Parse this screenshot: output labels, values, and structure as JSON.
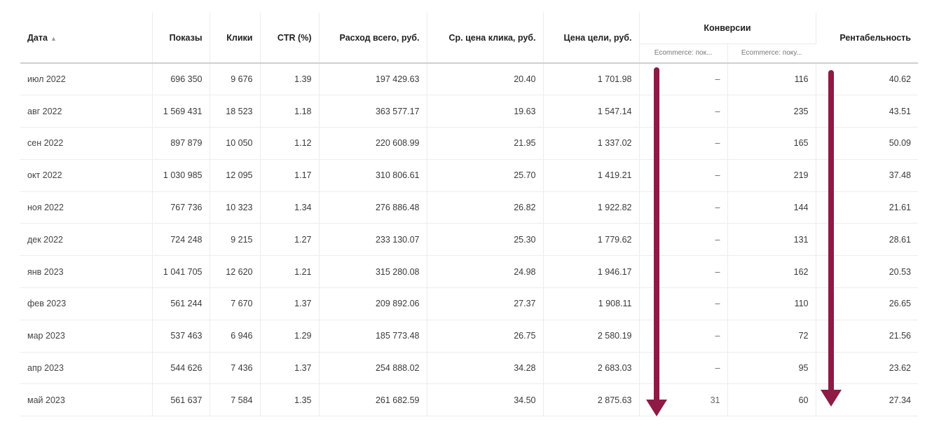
{
  "header": {
    "date": "Дата",
    "sort_icon": "▲",
    "impressions": "Показы",
    "clicks": "Клики",
    "ctr": "CTR (%)",
    "total_spend": "Расход всего, руб.",
    "avg_click_price": "Ср. цена клика, руб.",
    "goal_price": "Цена цели, руб.",
    "conversions": "Конверсии",
    "conv_sub1": "Ecommerce: пок...",
    "conv_sub2": "Ecommerce: поку...",
    "profitability": "Рентабельность"
  },
  "rows": [
    {
      "date": "июл 2022",
      "impressions": "696 350",
      "clicks": "9 676",
      "ctr": "1.39",
      "spend": "197 429.63",
      "cpc": "20.40",
      "goal": "1 701.98",
      "conv1": "–",
      "conv2": "116",
      "profit": "40.62"
    },
    {
      "date": "авг 2022",
      "impressions": "1 569 431",
      "clicks": "18 523",
      "ctr": "1.18",
      "spend": "363 577.17",
      "cpc": "19.63",
      "goal": "1 547.14",
      "conv1": "–",
      "conv2": "235",
      "profit": "43.51"
    },
    {
      "date": "сен 2022",
      "impressions": "897 879",
      "clicks": "10 050",
      "ctr": "1.12",
      "spend": "220 608.99",
      "cpc": "21.95",
      "goal": "1 337.02",
      "conv1": "–",
      "conv2": "165",
      "profit": "50.09"
    },
    {
      "date": "окт 2022",
      "impressions": "1 030 985",
      "clicks": "12 095",
      "ctr": "1.17",
      "spend": "310 806.61",
      "cpc": "25.70",
      "goal": "1 419.21",
      "conv1": "–",
      "conv2": "219",
      "profit": "37.48"
    },
    {
      "date": "ноя 2022",
      "impressions": "767 736",
      "clicks": "10 323",
      "ctr": "1.34",
      "spend": "276 886.48",
      "cpc": "26.82",
      "goal": "1 922.82",
      "conv1": "–",
      "conv2": "144",
      "profit": "21.61"
    },
    {
      "date": "дек 2022",
      "impressions": "724 248",
      "clicks": "9 215",
      "ctr": "1.27",
      "spend": "233 130.07",
      "cpc": "25.30",
      "goal": "1 779.62",
      "conv1": "–",
      "conv2": "131",
      "profit": "28.61"
    },
    {
      "date": "янв 2023",
      "impressions": "1 041 705",
      "clicks": "12 620",
      "ctr": "1.21",
      "spend": "315 280.08",
      "cpc": "24.98",
      "goal": "1 946.17",
      "conv1": "–",
      "conv2": "162",
      "profit": "20.53"
    },
    {
      "date": "фев 2023",
      "impressions": "561 244",
      "clicks": "7 670",
      "ctr": "1.37",
      "spend": "209 892.06",
      "cpc": "27.37",
      "goal": "1 908.11",
      "conv1": "–",
      "conv2": "110",
      "profit": "26.65"
    },
    {
      "date": "мар 2023",
      "impressions": "537 463",
      "clicks": "6 946",
      "ctr": "1.29",
      "spend": "185 773.48",
      "cpc": "26.75",
      "goal": "2 580.19",
      "conv1": "–",
      "conv2": "72",
      "profit": "21.56"
    },
    {
      "date": "апр 2023",
      "impressions": "544 626",
      "clicks": "7 436",
      "ctr": "1.37",
      "spend": "254 888.02",
      "cpc": "34.28",
      "goal": "2 683.03",
      "conv1": "–",
      "conv2": "95",
      "profit": "23.62"
    },
    {
      "date": "май 2023",
      "impressions": "561 637",
      "clicks": "7 584",
      "ctr": "1.35",
      "spend": "261 682.59",
      "cpc": "34.50",
      "goal": "2 875.63",
      "conv1": "31",
      "conv2": "60",
      "profit": "27.34"
    }
  ],
  "colors": {
    "arrow": "#8e1a46"
  }
}
